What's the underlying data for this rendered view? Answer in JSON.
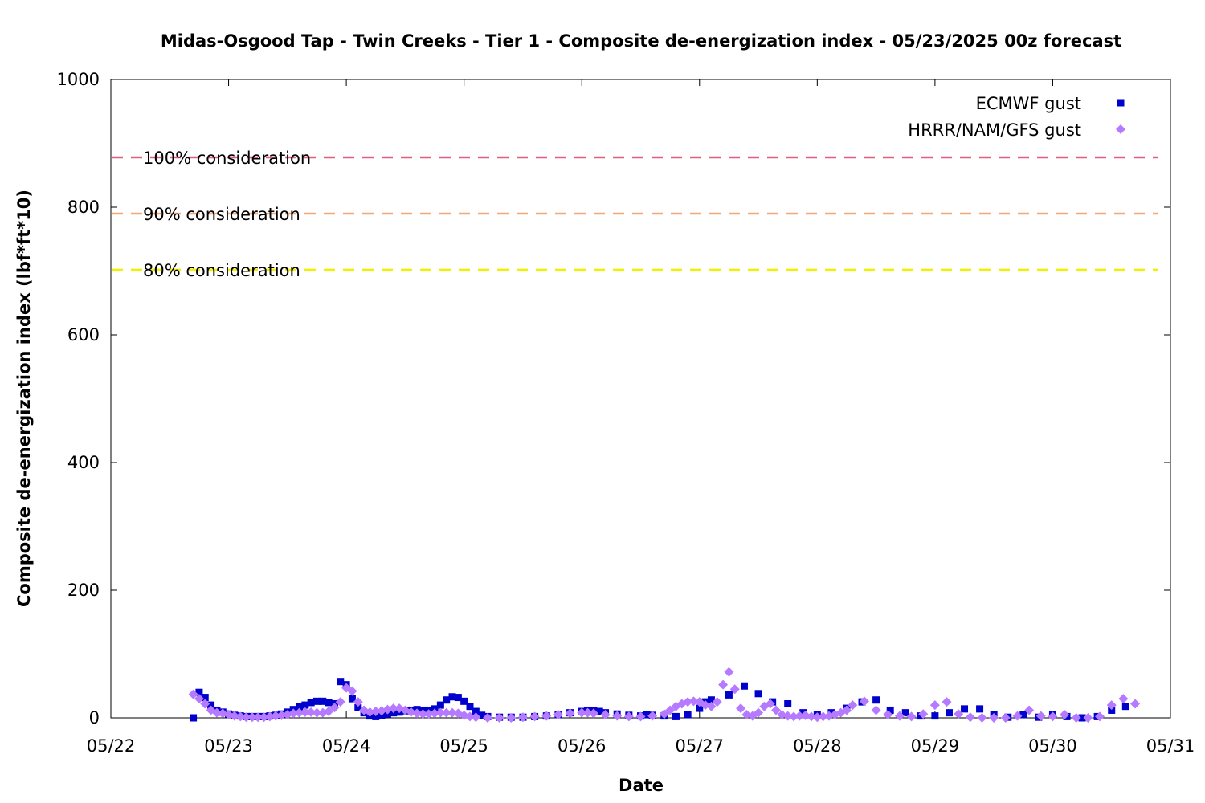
{
  "chart_data": {
    "type": "scatter",
    "title": "Midas-Osgood Tap - Twin Creeks - Tier 1 - Composite de-energization index - 05/23/2025 00z forecast",
    "xlabel": "Date",
    "ylabel": "Composite de-energization index (lbf*ft*10)",
    "xlim": [
      0,
      9
    ],
    "ylim": [
      0,
      1000
    ],
    "x_ticks": [
      {
        "value": 0,
        "label": "05/22"
      },
      {
        "value": 1,
        "label": "05/23"
      },
      {
        "value": 2,
        "label": "05/24"
      },
      {
        "value": 3,
        "label": "05/25"
      },
      {
        "value": 4,
        "label": "05/26"
      },
      {
        "value": 5,
        "label": "05/27"
      },
      {
        "value": 6,
        "label": "05/28"
      },
      {
        "value": 7,
        "label": "05/29"
      },
      {
        "value": 8,
        "label": "05/30"
      },
      {
        "value": 9,
        "label": "05/31"
      }
    ],
    "y_ticks": [
      {
        "value": 0,
        "label": "0"
      },
      {
        "value": 200,
        "label": "200"
      },
      {
        "value": 400,
        "label": "400"
      },
      {
        "value": 600,
        "label": "600"
      },
      {
        "value": 800,
        "label": "800"
      },
      {
        "value": 1000,
        "label": "1000"
      }
    ],
    "grid": false,
    "legend_position": "top-right",
    "reference_lines": [
      {
        "label": "100% consideration",
        "value": 878,
        "color": "#e06080"
      },
      {
        "label": "90% consideration",
        "value": 790,
        "color": "#f4a87a"
      },
      {
        "label": "80% consideration",
        "value": 702,
        "color": "#f0f000"
      }
    ],
    "series": [
      {
        "name": "ECMWF gust",
        "marker": "square",
        "color": "#0000cc",
        "points": [
          [
            0.7,
            0
          ],
          [
            0.75,
            40
          ],
          [
            0.8,
            32
          ],
          [
            0.85,
            20
          ],
          [
            0.9,
            12
          ],
          [
            0.95,
            9
          ],
          [
            1.0,
            6
          ],
          [
            1.05,
            4
          ],
          [
            1.1,
            3
          ],
          [
            1.15,
            2
          ],
          [
            1.2,
            2
          ],
          [
            1.25,
            2
          ],
          [
            1.3,
            2
          ],
          [
            1.35,
            3
          ],
          [
            1.4,
            4
          ],
          [
            1.45,
            6
          ],
          [
            1.5,
            9
          ],
          [
            1.55,
            13
          ],
          [
            1.6,
            17
          ],
          [
            1.65,
            20
          ],
          [
            1.7,
            24
          ],
          [
            1.75,
            26
          ],
          [
            1.8,
            26
          ],
          [
            1.85,
            24
          ],
          [
            1.9,
            22
          ],
          [
            1.95,
            57
          ],
          [
            2.0,
            52
          ],
          [
            2.05,
            30
          ],
          [
            2.1,
            16
          ],
          [
            2.15,
            8
          ],
          [
            2.2,
            3
          ],
          [
            2.25,
            2
          ],
          [
            2.3,
            4
          ],
          [
            2.35,
            6
          ],
          [
            2.4,
            8
          ],
          [
            2.45,
            9
          ],
          [
            2.5,
            11
          ],
          [
            2.55,
            12
          ],
          [
            2.6,
            13
          ],
          [
            2.65,
            12
          ],
          [
            2.7,
            12
          ],
          [
            2.75,
            14
          ],
          [
            2.8,
            20
          ],
          [
            2.85,
            28
          ],
          [
            2.9,
            33
          ],
          [
            2.95,
            32
          ],
          [
            3.0,
            26
          ],
          [
            3.05,
            18
          ],
          [
            3.1,
            10
          ],
          [
            3.15,
            4
          ],
          [
            3.2,
            2
          ],
          [
            3.3,
            1
          ],
          [
            3.4,
            1
          ],
          [
            3.5,
            1
          ],
          [
            3.6,
            2
          ],
          [
            3.7,
            3
          ],
          [
            3.8,
            5
          ],
          [
            3.9,
            8
          ],
          [
            4.0,
            10
          ],
          [
            4.05,
            12
          ],
          [
            4.1,
            11
          ],
          [
            4.15,
            10
          ],
          [
            4.2,
            8
          ],
          [
            4.3,
            6
          ],
          [
            4.4,
            4
          ],
          [
            4.5,
            3
          ],
          [
            4.55,
            5
          ],
          [
            4.6,
            4
          ],
          [
            4.7,
            3
          ],
          [
            4.8,
            2
          ],
          [
            4.9,
            5
          ],
          [
            5.0,
            15
          ],
          [
            5.05,
            25
          ],
          [
            5.1,
            28
          ],
          [
            5.25,
            36
          ],
          [
            5.38,
            50
          ],
          [
            5.5,
            38
          ],
          [
            5.62,
            25
          ],
          [
            5.75,
            22
          ],
          [
            5.88,
            8
          ],
          [
            6.0,
            5
          ],
          [
            6.12,
            8
          ],
          [
            6.25,
            15
          ],
          [
            6.38,
            25
          ],
          [
            6.5,
            28
          ],
          [
            6.62,
            12
          ],
          [
            6.75,
            8
          ],
          [
            6.88,
            3
          ],
          [
            7.0,
            3
          ],
          [
            7.12,
            8
          ],
          [
            7.25,
            14
          ],
          [
            7.38,
            14
          ],
          [
            7.5,
            5
          ],
          [
            7.62,
            1
          ],
          [
            7.75,
            5
          ],
          [
            7.88,
            1
          ],
          [
            8.0,
            5
          ],
          [
            8.12,
            2
          ],
          [
            8.25,
            0
          ],
          [
            8.38,
            2
          ],
          [
            8.5,
            12
          ],
          [
            8.62,
            18
          ]
        ]
      },
      {
        "name": "HRRR/NAM/GFS gust",
        "marker": "diamond",
        "color": "#b57aff",
        "points": [
          [
            0.7,
            37
          ],
          [
            0.75,
            30
          ],
          [
            0.8,
            22
          ],
          [
            0.85,
            12
          ],
          [
            0.9,
            8
          ],
          [
            0.95,
            7
          ],
          [
            1.0,
            5
          ],
          [
            1.05,
            3
          ],
          [
            1.1,
            2
          ],
          [
            1.15,
            1
          ],
          [
            1.2,
            1
          ],
          [
            1.25,
            1
          ],
          [
            1.3,
            1
          ],
          [
            1.35,
            2
          ],
          [
            1.4,
            3
          ],
          [
            1.45,
            4
          ],
          [
            1.5,
            5
          ],
          [
            1.55,
            7
          ],
          [
            1.6,
            8
          ],
          [
            1.65,
            9
          ],
          [
            1.7,
            9
          ],
          [
            1.75,
            8
          ],
          [
            1.8,
            8
          ],
          [
            1.85,
            10
          ],
          [
            1.9,
            16
          ],
          [
            1.95,
            25
          ],
          [
            2.0,
            47
          ],
          [
            2.05,
            42
          ],
          [
            2.1,
            25
          ],
          [
            2.15,
            12
          ],
          [
            2.2,
            9
          ],
          [
            2.25,
            10
          ],
          [
            2.3,
            11
          ],
          [
            2.35,
            13
          ],
          [
            2.4,
            15
          ],
          [
            2.45,
            15
          ],
          [
            2.5,
            12
          ],
          [
            2.55,
            9
          ],
          [
            2.6,
            7
          ],
          [
            2.65,
            6
          ],
          [
            2.7,
            6
          ],
          [
            2.75,
            7
          ],
          [
            2.8,
            8
          ],
          [
            2.85,
            8
          ],
          [
            2.9,
            8
          ],
          [
            2.95,
            7
          ],
          [
            3.0,
            4
          ],
          [
            3.05,
            2
          ],
          [
            3.1,
            1
          ],
          [
            3.2,
            0
          ],
          [
            3.3,
            0
          ],
          [
            3.4,
            0
          ],
          [
            3.5,
            1
          ],
          [
            3.6,
            2
          ],
          [
            3.7,
            3
          ],
          [
            3.8,
            5
          ],
          [
            3.9,
            7
          ],
          [
            4.0,
            8
          ],
          [
            4.05,
            8
          ],
          [
            4.1,
            7
          ],
          [
            4.2,
            5
          ],
          [
            4.3,
            3
          ],
          [
            4.4,
            2
          ],
          [
            4.5,
            2
          ],
          [
            4.6,
            3
          ],
          [
            4.7,
            6
          ],
          [
            4.75,
            12
          ],
          [
            4.8,
            18
          ],
          [
            4.85,
            22
          ],
          [
            4.9,
            25
          ],
          [
            4.95,
            26
          ],
          [
            5.0,
            25
          ],
          [
            5.05,
            20
          ],
          [
            5.1,
            18
          ],
          [
            5.15,
            25
          ],
          [
            5.2,
            52
          ],
          [
            5.25,
            72
          ],
          [
            5.3,
            45
          ],
          [
            5.35,
            15
          ],
          [
            5.4,
            5
          ],
          [
            5.45,
            3
          ],
          [
            5.5,
            8
          ],
          [
            5.55,
            18
          ],
          [
            5.6,
            22
          ],
          [
            5.65,
            12
          ],
          [
            5.7,
            5
          ],
          [
            5.75,
            3
          ],
          [
            5.8,
            2
          ],
          [
            5.85,
            3
          ],
          [
            5.9,
            4
          ],
          [
            5.95,
            2
          ],
          [
            6.0,
            1
          ],
          [
            6.05,
            2
          ],
          [
            6.1,
            3
          ],
          [
            6.15,
            5
          ],
          [
            6.2,
            8
          ],
          [
            6.25,
            12
          ],
          [
            6.3,
            20
          ],
          [
            6.4,
            26
          ],
          [
            6.5,
            12
          ],
          [
            6.6,
            5
          ],
          [
            6.7,
            3
          ],
          [
            6.8,
            2
          ],
          [
            6.9,
            6
          ],
          [
            7.0,
            20
          ],
          [
            7.1,
            25
          ],
          [
            7.2,
            6
          ],
          [
            7.3,
            1
          ],
          [
            7.4,
            0
          ],
          [
            7.5,
            0
          ],
          [
            7.6,
            0
          ],
          [
            7.7,
            3
          ],
          [
            7.8,
            12
          ],
          [
            7.9,
            3
          ],
          [
            8.0,
            2
          ],
          [
            8.1,
            5
          ],
          [
            8.2,
            0
          ],
          [
            8.3,
            0
          ],
          [
            8.4,
            2
          ],
          [
            8.5,
            20
          ],
          [
            8.6,
            30
          ],
          [
            8.7,
            22
          ]
        ]
      }
    ]
  }
}
